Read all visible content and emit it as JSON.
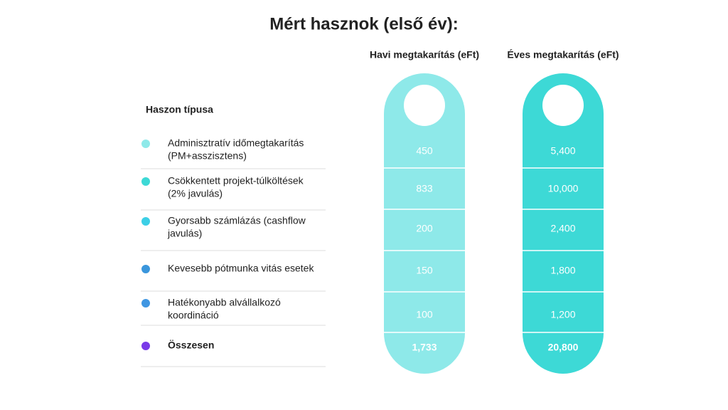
{
  "header": {
    "title": "Mért hasznok (első év):"
  },
  "table": {
    "columns": [
      "Haszon típusa",
      "Havi megtakarítás (eFt)",
      "Éves megtakarítás (eFt)"
    ],
    "column_colors": [
      "#8ee9e9",
      "#3dd9d6"
    ],
    "rows": [
      {
        "label": [
          "Adminisztratív időmegtakarítás",
          "(PM+asszisztens)"
        ],
        "color": "#8ee9e9",
        "monthly": "450",
        "yearly": "5,400"
      },
      {
        "label": [
          "Csökkentett projekt-túlköltések",
          "(2% javulás)"
        ],
        "color": "#3dd9d6",
        "monthly": "833",
        "yearly": "10,000"
      },
      {
        "label": [
          "Gyorsabb számlázás (cashflow",
          "javulás)"
        ],
        "color": "#3ccfe6",
        "monthly": "200",
        "yearly": "2,400"
      },
      {
        "label": [
          "Kevesebb pótmunka vitás esetek"
        ],
        "color": "#3a96dc",
        "monthly": "150",
        "yearly": "1,800"
      },
      {
        "label": [
          "Hatékonyabb alvállalkozó",
          "koordináció"
        ],
        "color": "#3f96e2",
        "monthly": "100",
        "yearly": "1,200"
      },
      {
        "label": [
          "Összesen"
        ],
        "color": "#7a3be8",
        "monthly": "1,733",
        "yearly": "20,800",
        "total": true
      }
    ]
  }
}
